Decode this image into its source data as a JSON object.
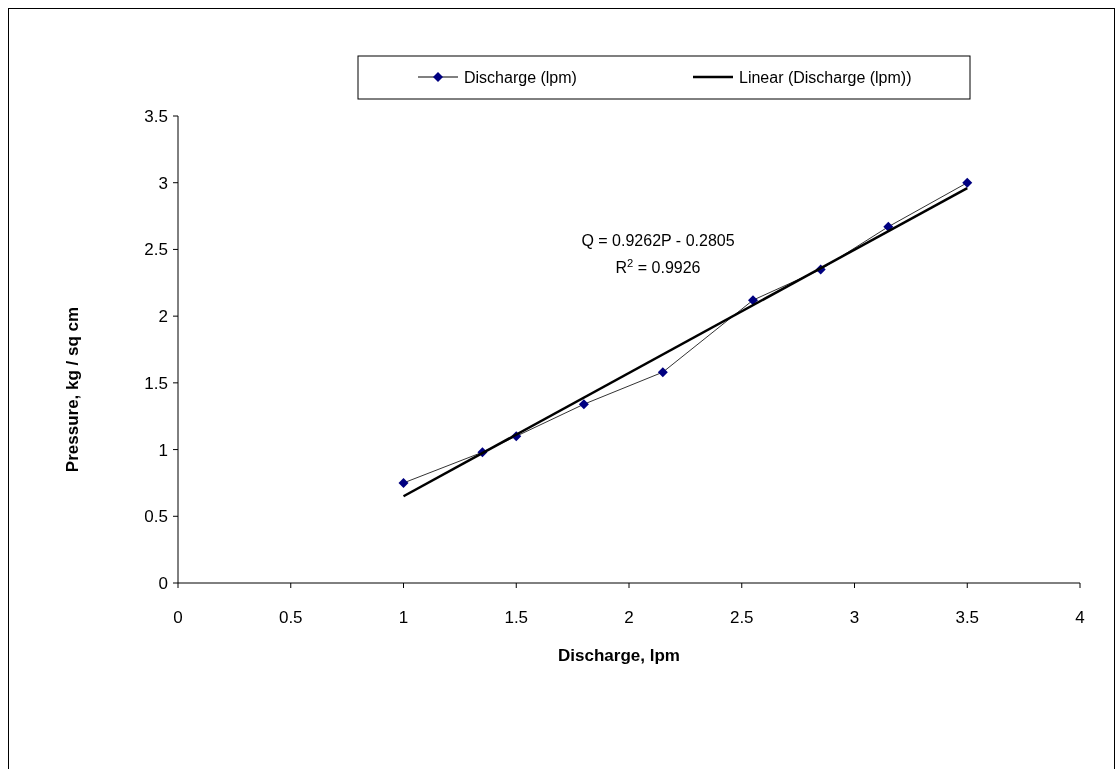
{
  "chart_data": {
    "type": "line",
    "xlabel": "Discharge, lpm",
    "ylabel": "Pressure, kg / sq cm",
    "xlim": [
      0,
      4
    ],
    "xticks": [
      0,
      0.5,
      1,
      1.5,
      2,
      2.5,
      3,
      3.5,
      4
    ],
    "ylim": [
      0,
      3.5
    ],
    "yticks": [
      0,
      0.5,
      1,
      1.5,
      2,
      2.5,
      3,
      3.5
    ],
    "series": [
      {
        "name": "Discharge (lpm)",
        "color": "#000080",
        "x": [
          1,
          1.35,
          1.5,
          1.8,
          2.15,
          2.55,
          2.85,
          3.15,
          3.5
        ],
        "values": [
          0.75,
          0.98,
          1.1,
          1.34,
          1.58,
          2.12,
          2.35,
          2.67,
          3.0
        ],
        "marker": "diamond"
      },
      {
        "name": "Linear (Discharge (lpm))",
        "color": "#000000",
        "x": [
          1,
          3.5
        ],
        "values": [
          0.65,
          2.96
        ],
        "marker": "none"
      }
    ],
    "annotations": [
      "Q = 0.9262P  - 0.2805",
      "R$^{2}$ = 0.9926"
    ],
    "legend": "top",
    "grid": false
  }
}
